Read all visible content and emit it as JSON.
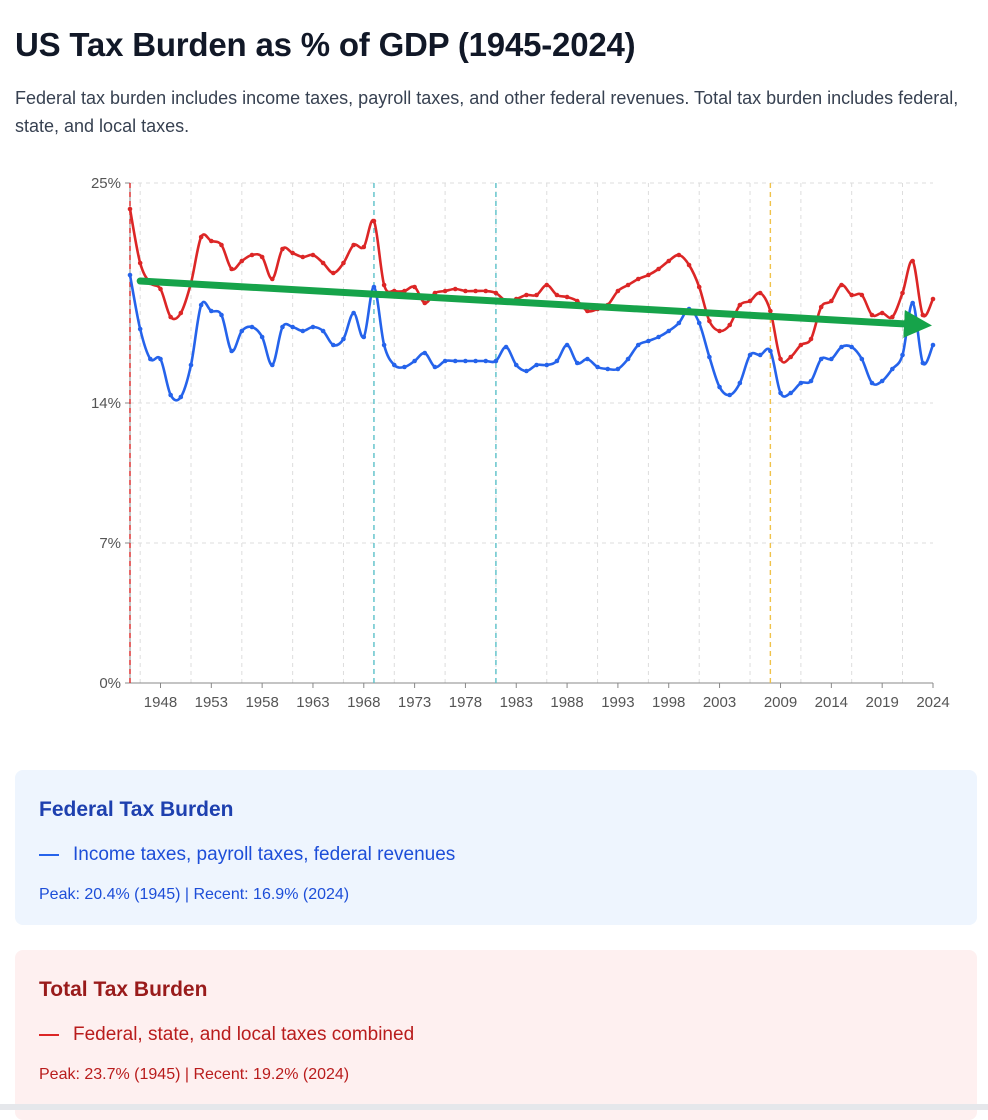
{
  "page": {
    "title": "US Tax Burden as % of GDP (1945-2024)",
    "subtitle": "Federal tax burden includes income taxes, payroll taxes, and other federal revenues. Total tax burden includes federal, state, and local taxes."
  },
  "chart_data": {
    "type": "line",
    "title": "US Tax Burden as % of GDP (1945-2024)",
    "xlabel": "",
    "ylabel": "",
    "ylim": [
      0,
      25
    ],
    "y_ticks": [
      0,
      7,
      14,
      25
    ],
    "y_tick_labels": [
      "0%",
      "7%",
      "14%",
      "25%"
    ],
    "x_ticks": [
      1948,
      1953,
      1958,
      1963,
      1968,
      1973,
      1978,
      1983,
      1988,
      1993,
      1998,
      2003,
      2009,
      2014,
      2019,
      2024
    ],
    "x_tick_labels": [
      "1948",
      "1953",
      "1958",
      "1963",
      "1968",
      "1973",
      "1978",
      "1983",
      "1988",
      "1993",
      "1998",
      "2003",
      "2009",
      "2014",
      "2019",
      "2024"
    ],
    "grid": true,
    "x": [
      1945,
      1946,
      1947,
      1948,
      1949,
      1950,
      1951,
      1952,
      1953,
      1954,
      1955,
      1956,
      1957,
      1958,
      1959,
      1960,
      1961,
      1962,
      1963,
      1964,
      1965,
      1966,
      1967,
      1968,
      1969,
      1970,
      1971,
      1972,
      1973,
      1974,
      1975,
      1976,
      1977,
      1978,
      1979,
      1980,
      1981,
      1982,
      1983,
      1984,
      1985,
      1986,
      1987,
      1988,
      1989,
      1990,
      1991,
      1992,
      1993,
      1994,
      1995,
      1996,
      1997,
      1998,
      1999,
      2000,
      2001,
      2002,
      2003,
      2004,
      2005,
      2006,
      2007,
      2008,
      2009,
      2010,
      2011,
      2012,
      2013,
      2014,
      2015,
      2016,
      2017,
      2018,
      2019,
      2020,
      2021,
      2022,
      2023,
      2024
    ],
    "series": [
      {
        "name": "Federal Tax Burden",
        "color": "#2563eb",
        "values": [
          20.4,
          17.7,
          16.2,
          16.2,
          14.4,
          14.3,
          15.9,
          18.9,
          18.6,
          18.4,
          16.6,
          17.6,
          17.8,
          17.3,
          15.9,
          17.8,
          17.8,
          17.6,
          17.8,
          17.6,
          16.9,
          17.2,
          18.5,
          17.3,
          19.8,
          16.9,
          15.9,
          15.8,
          16.1,
          16.5,
          15.8,
          16.1,
          16.1,
          16.1,
          16.1,
          16.1,
          16.1,
          16.8,
          15.9,
          15.6,
          15.9,
          15.9,
          16.1,
          16.9,
          16.0,
          16.2,
          15.8,
          15.7,
          15.7,
          16.2,
          16.9,
          17.1,
          17.3,
          17.6,
          18.0,
          18.7,
          18.0,
          16.3,
          14.8,
          14.4,
          15.0,
          16.4,
          16.4,
          16.6,
          14.5,
          14.5,
          15.0,
          15.1,
          16.2,
          16.2,
          16.8,
          16.8,
          16.2,
          15.0,
          15.1,
          15.7,
          16.4,
          19.0,
          16.0,
          16.9
        ]
      },
      {
        "name": "Total Tax Burden",
        "color": "#dc2626",
        "values": [
          23.7,
          21.0,
          20.0,
          19.7,
          18.3,
          18.5,
          20.0,
          22.3,
          22.1,
          21.9,
          20.7,
          21.1,
          21.4,
          21.3,
          20.2,
          21.7,
          21.5,
          21.3,
          21.4,
          21.0,
          20.5,
          21.0,
          21.9,
          21.8,
          23.1,
          19.9,
          19.6,
          19.6,
          19.8,
          19.0,
          19.5,
          19.6,
          19.7,
          19.6,
          19.6,
          19.6,
          19.5,
          19.1,
          19.2,
          19.4,
          19.4,
          19.9,
          19.4,
          19.3,
          19.1,
          18.6,
          18.7,
          18.9,
          19.6,
          19.9,
          20.2,
          20.4,
          20.7,
          21.1,
          21.4,
          20.9,
          19.8,
          18.1,
          17.6,
          17.9,
          18.9,
          19.1,
          19.5,
          18.6,
          16.2,
          16.3,
          16.9,
          17.2,
          18.8,
          19.1,
          19.9,
          19.4,
          19.4,
          18.4,
          18.5,
          18.3,
          19.5,
          21.1,
          18.4,
          19.2
        ]
      }
    ],
    "annotations": [
      {
        "type": "vertical-line",
        "x": 1945,
        "color": "#dc2626"
      },
      {
        "type": "vertical-line",
        "x": 1969,
        "color": "#5bc0c8"
      },
      {
        "type": "vertical-line",
        "x": 1981,
        "color": "#5bc0c8"
      },
      {
        "type": "vertical-line",
        "x": 2008,
        "color": "#f0c24a"
      },
      {
        "type": "trend-arrow",
        "from": {
          "x": 1946,
          "y": 20.1
        },
        "to": {
          "x": 2024,
          "y": 17.9
        },
        "color": "#16a34a"
      }
    ]
  },
  "cards": {
    "federal": {
      "title": "Federal Tax Burden",
      "description": "Income taxes, payroll taxes, federal revenues",
      "stats": "Peak: 20.4% (1945) | Recent: 16.9% (2024)",
      "color": "#2563eb"
    },
    "total": {
      "title": "Total Tax Burden",
      "description": "Federal, state, and local taxes combined",
      "stats": "Peak: 23.7% (1945) | Recent: 19.2% (2024)",
      "color": "#dc2626"
    }
  }
}
